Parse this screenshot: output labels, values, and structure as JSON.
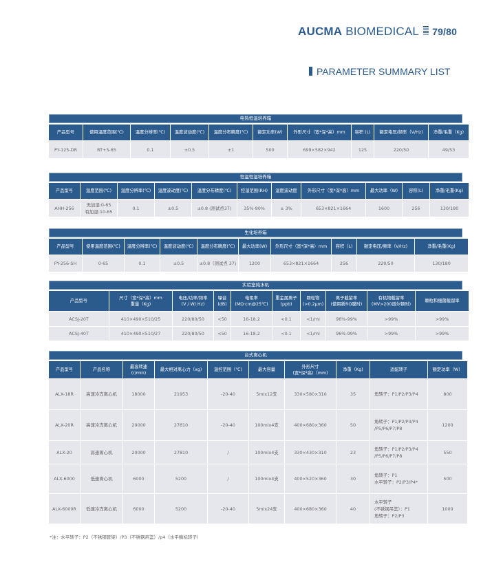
{
  "header": {
    "brand_bold": "AUCMA",
    "brand_light": "BIOMEDICAL",
    "page": "79/80",
    "section_title": "PARAMETER SUMMARY LIST"
  },
  "colors": {
    "brand": "#2b5a8c",
    "row_bg": "#e6e6ed"
  },
  "tables": [
    {
      "title": "电热恒温培养箱",
      "headers": [
        "产品型号",
        "使用温度范围(℃)",
        "温度分辨率(℃)",
        "温度波动度(℃)",
        "温度分布精度(℃)",
        "额定功率(W)",
        "外形尺寸（宽*深*高）mm",
        "容积 (L)",
        "额定电压/频率（V/Hz)",
        "净重/毛重（Kg)"
      ],
      "rows": [
        [
          "PY-125-DR",
          "RT+5-65",
          "0.1",
          "±0.5",
          "±1",
          "500",
          "699×582×942",
          "125",
          "220/50",
          "49/53"
        ]
      ]
    },
    {
      "title": "恒温恒湿培养箱",
      "headers": [
        "产品型号",
        "温度范围(℃)",
        "温度分辨率(℃)",
        "温度波动度(℃)",
        "温度分布精度(℃)",
        "控湿范围(RH)",
        "湿度波动度",
        "外形尺寸（宽*深*高）mm",
        "最大功率（W)",
        "容积(L)",
        "净重/毛重(Kg)"
      ],
      "rows": [
        [
          "AHH-256",
          "无加湿:0-65\n有加湿:10-65",
          "0.1",
          "±0.5",
          "±0.8 (测试点37)",
          "35%-90%",
          "± 3%",
          "653×821×1664",
          "1600",
          "256",
          "130/180"
        ]
      ]
    },
    {
      "title": "生化培养箱",
      "headers": [
        "产品型号",
        "使用温度范围(℃)",
        "温度分辨率(℃)",
        "温度波动度(℃)",
        "温度分布精度(℃)",
        "最大功率(W)",
        "外形尺寸（宽*深*高）mm",
        "容积（L)",
        "额定电压/频率（V/Hz)",
        "净重/毛重(Kg)"
      ],
      "rows": [
        [
          "PY-256-SH",
          "0-65",
          "0.1",
          "±0.5",
          "±0.8（测试点 37)",
          "1200",
          "653×821×1664",
          "256",
          "220/50",
          "130/180"
        ]
      ]
    },
    {
      "title": "实验室纯水机",
      "headers": [
        "产品型号",
        "尺寸（宽*深*高）mm\n重量（Kg)",
        "电压/功率/频率\n(V / W/ Hz)",
        "噪音\n(dB)",
        "电阻率\n(MΩ·cm@25℃)",
        "重金属离子\n(ppb)",
        "颗粒物\n(>0.2μm)",
        "离子截留率\n(使用新RO膜时)",
        "有机物截留率\n(MV>200道尔顿时)",
        "颗粒和细菌截留率"
      ],
      "rows": [
        [
          "ACSJ-20T",
          "410×490×510/25",
          "220/80/50",
          "<50",
          "16-18.2",
          "<0.1",
          "<1/ml",
          "96%-99%",
          ">99%",
          ">99%"
        ],
        [
          "ACSJ-40T",
          "410×490×510/27",
          "220/80/50",
          "<50",
          "16-18.2",
          "<0.1",
          "<1/ml",
          "96%-99%",
          ">99%",
          ">99%"
        ]
      ]
    },
    {
      "title": "台式离心机",
      "headers": [
        "产品型号",
        "产品名称",
        "最高转速\n(r/min)",
        "最大相对离心力（xg)",
        "温控范围（℃)",
        "最大容量",
        "外形尺寸\n(宽*深*高)（mm)",
        "净重（Kg)",
        "适配转子",
        "额定功率（W）"
      ],
      "rows": [
        [
          "ALX-18R",
          "高速冷冻离心机",
          "18000",
          "21953",
          "-20-40",
          "5mlx12支",
          "330×580×310",
          "35",
          "角转子：P1/P2/P3/P4",
          "800"
        ],
        [
          "ALX-20R",
          "高速冷冻离心机",
          "20000",
          "27810",
          "-20-40",
          "100mlx4支",
          "400×680×360",
          "50",
          "角转子：P1/P2/P3/P4\n/P5/P6/P7/P8",
          "1200"
        ],
        [
          "ALX-20",
          "高速离心机",
          "20000",
          "27810",
          "/",
          "100mlx4支",
          "330×430×310",
          "23",
          "角转子：P1/P2/P3/P4\n/P5/P6/P7/P8",
          "550"
        ],
        [
          "ALX-6000",
          "低速离心机",
          "6000",
          "5200",
          "/",
          "100mlx4支",
          "400×520×360",
          "30",
          "角转子：P1\n水平转子：P2/P3/P4*",
          "500"
        ],
        [
          "ALX-6000R",
          "低速冷冻离心机",
          "6000",
          "5200",
          "-20-40",
          "5mlx24支",
          "400×680×360",
          "40",
          "水平转子\n(不锈钢吊篮）：P1\n角转子：P2/P3",
          "1000"
        ]
      ]
    }
  ],
  "footnote": "*注：水平转子：P2（不锈钢管架）/P3（不锈钢吊篮）/p4（水平酶标转子）"
}
